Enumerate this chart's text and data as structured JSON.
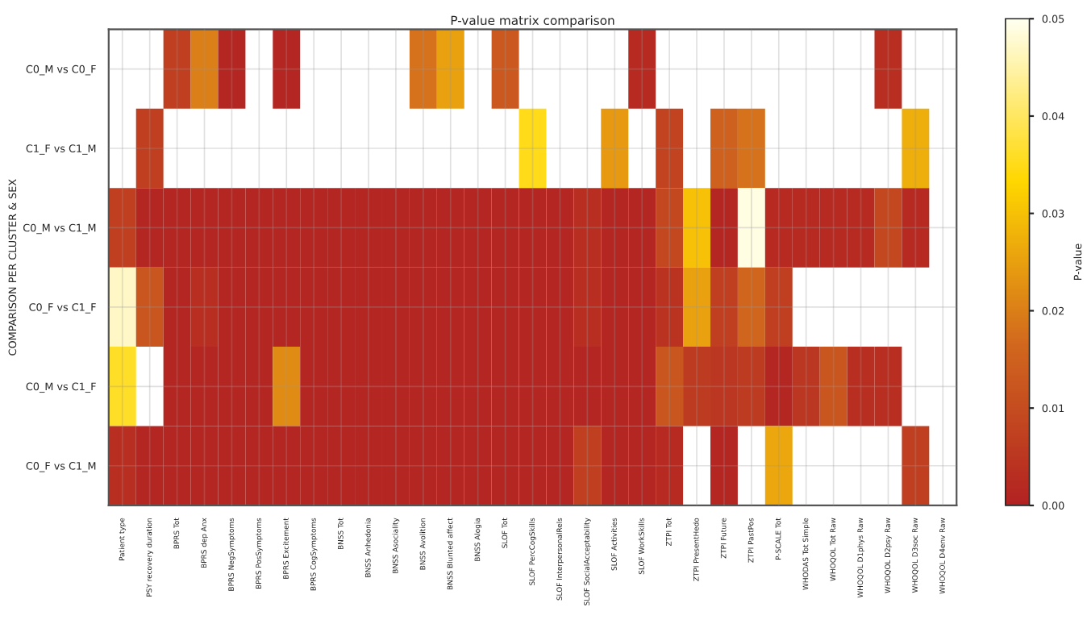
{
  "chart_data": {
    "type": "heatmap",
    "title": "P-value matrix comparison",
    "ylabel": "COMPARISON PER CLUSTER & SEX",
    "clabel": "P-value",
    "categories": [
      "Patient type",
      "PSY recovery duration",
      "BPRS Tot",
      "BPRS dep Anx",
      "BPRS NegSymptoms",
      "BPRS PosSymptoms",
      "BPRS Excitement",
      "BPRS CogSymptoms",
      "BNSS Tot",
      "BNSS Anhedonia",
      "BNSS Asociality",
      "BNSS Avolition",
      "BNSS Blunted affect",
      "BNSS Alogia",
      "SLOF Tot",
      "SLOF PercCogSkills",
      "SLOF InterpersonalRels",
      "SLOF SocialAcceptability",
      "SLOF Activities",
      "SLOF WorkSkills",
      "ZTPI Tot",
      "ZTPI PresentHedo",
      "ZTPI Future",
      "ZTPI PastPos",
      "P-SCALE Tot",
      "WHODAS Tot Simple",
      "WHOQOL Tot Raw",
      "WHOQOL D1phys Raw",
      "WHOQOL D2psy Raw",
      "WHOQOL D3soc Raw",
      "WHOQOL D4env Raw"
    ],
    "y_categories": [
      "C0_M vs C0_F",
      "C1_F vs C1_M",
      "C0_M vs C1_M",
      "C0_F vs C1_F",
      "C0_M vs C1_F",
      "C0_F vs C1_M"
    ],
    "cells": [
      [
        null,
        null,
        0.007,
        0.02,
        0.001,
        null,
        0.001,
        null,
        null,
        null,
        null,
        0.018,
        0.025,
        null,
        0.013,
        null,
        null,
        null,
        null,
        0.002,
        null,
        null,
        null,
        null,
        null,
        null,
        null,
        null,
        0.003,
        null,
        null
      ],
      [
        null,
        0.007,
        null,
        null,
        null,
        null,
        null,
        null,
        null,
        null,
        null,
        null,
        null,
        null,
        null,
        0.035,
        null,
        null,
        0.024,
        null,
        0.008,
        null,
        0.015,
        0.018,
        null,
        null,
        null,
        null,
        null,
        0.027,
        null
      ],
      [
        0.007,
        0.001,
        0.001,
        0.001,
        0.001,
        0.001,
        0.001,
        0.001,
        0.001,
        0.001,
        0.001,
        0.001,
        0.001,
        0.001,
        0.001,
        0.001,
        0.001,
        0.003,
        0.001,
        0.001,
        0.009,
        0.03,
        0.001,
        0.049,
        0.002,
        0.002,
        0.002,
        0.002,
        0.009,
        0.002,
        null
      ],
      [
        0.047,
        0.012,
        0.001,
        0.003,
        0.001,
        0.001,
        0.001,
        0.001,
        0.001,
        0.001,
        0.001,
        0.001,
        0.001,
        0.001,
        0.001,
        0.001,
        0.001,
        0.003,
        0.001,
        0.001,
        0.004,
        0.025,
        0.007,
        0.016,
        0.007,
        null,
        null,
        null,
        null,
        null,
        null
      ],
      [
        0.036,
        null,
        0.001,
        0.001,
        0.001,
        0.001,
        0.022,
        0.001,
        0.001,
        0.001,
        0.001,
        0.001,
        0.001,
        0.001,
        0.001,
        0.001,
        0.001,
        0.001,
        0.001,
        0.001,
        0.012,
        0.006,
        0.005,
        0.006,
        0.001,
        0.005,
        0.012,
        0.003,
        0.003,
        null,
        null
      ],
      [
        0.003,
        0.001,
        0.001,
        0.001,
        0.001,
        0.001,
        0.001,
        0.001,
        0.001,
        0.001,
        0.001,
        0.001,
        0.001,
        0.001,
        0.001,
        0.001,
        0.001,
        0.007,
        0.001,
        0.001,
        0.002,
        null,
        0.001,
        null,
        0.026,
        null,
        null,
        null,
        null,
        0.007,
        null
      ]
    ],
    "clim": [
      0,
      0.05
    ],
    "cticks": [
      {
        "value": 0,
        "label": "0.00"
      },
      {
        "value": 0.01,
        "label": "0.01"
      },
      {
        "value": 0.02,
        "label": "0.02"
      },
      {
        "value": 0.03,
        "label": "0.03"
      },
      {
        "value": 0.04,
        "label": "0.04"
      },
      {
        "value": 0.05,
        "label": "0.05"
      }
    ],
    "grid": true
  }
}
